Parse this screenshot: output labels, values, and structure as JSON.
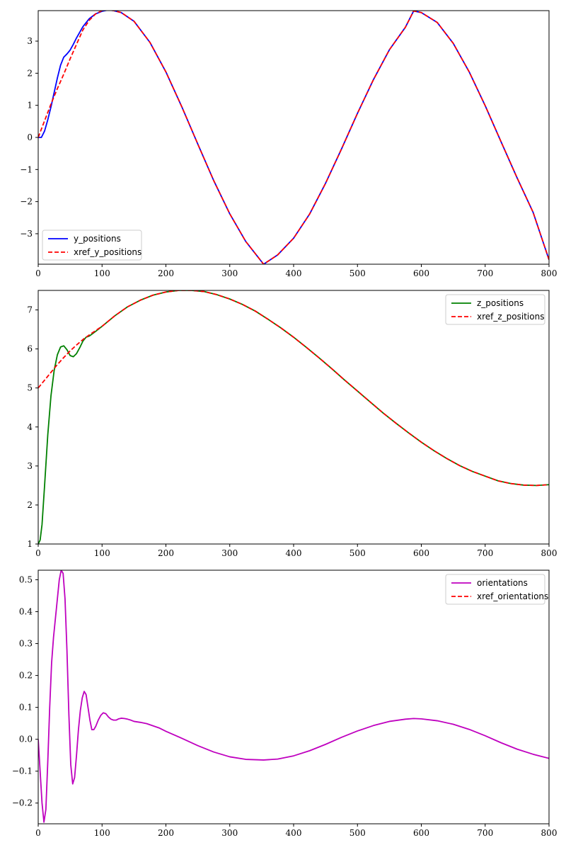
{
  "chart_data": [
    {
      "type": "line",
      "xlim": [
        0,
        800
      ],
      "ylim": [
        -3.95,
        3.95
      ],
      "xticks": [
        0,
        100,
        200,
        300,
        400,
        500,
        600,
        700,
        800
      ],
      "yticks": [
        -3,
        -2,
        -1,
        0,
        1,
        2,
        3
      ],
      "ytick_labels": [
        "−3",
        "−2",
        "−1",
        "0",
        "1",
        "2",
        "3"
      ],
      "legend_position": "lower-left",
      "series": [
        {
          "name": "y_positions",
          "color": "#0000ff",
          "style": "solid",
          "x": [
            0,
            5,
            10,
            15,
            20,
            25,
            30,
            35,
            40,
            45,
            50,
            55,
            60,
            70,
            80,
            90,
            100,
            110,
            118,
            130,
            150,
            175,
            200,
            225,
            250,
            275,
            300,
            325,
            353,
            375,
            400,
            425,
            450,
            475,
            500,
            525,
            550,
            575,
            588,
            600,
            625,
            650,
            675,
            700,
            725,
            750,
            775,
            800
          ],
          "y": [
            0.0,
            0.0,
            0.2,
            0.55,
            0.95,
            1.4,
            1.85,
            2.25,
            2.5,
            2.6,
            2.72,
            2.9,
            3.1,
            3.45,
            3.7,
            3.85,
            3.93,
            3.97,
            3.95,
            3.89,
            3.62,
            2.96,
            2.04,
            0.95,
            -0.21,
            -1.35,
            -2.38,
            -3.24,
            -3.95,
            -3.66,
            -3.14,
            -2.39,
            -1.43,
            -0.36,
            0.75,
            1.8,
            2.73,
            3.43,
            3.94,
            3.89,
            3.58,
            2.93,
            2.04,
            0.99,
            -0.14,
            -1.26,
            -2.33,
            -3.81
          ]
        },
        {
          "name": "xref_y_positions",
          "color": "#ff0000",
          "style": "dashed",
          "x": [
            0,
            10,
            20,
            30,
            40,
            50,
            60,
            70,
            80,
            90,
            100,
            110,
            118,
            130,
            150,
            175,
            200,
            225,
            250,
            275,
            300,
            325,
            353,
            375,
            400,
            425,
            450,
            475,
            500,
            525,
            550,
            575,
            588,
            600,
            625,
            650,
            675,
            700,
            725,
            750,
            775,
            800
          ],
          "y": [
            0.0,
            0.52,
            1.04,
            1.52,
            1.97,
            2.45,
            2.9,
            3.35,
            3.65,
            3.85,
            3.95,
            3.97,
            3.95,
            3.89,
            3.62,
            2.96,
            2.04,
            0.95,
            -0.21,
            -1.35,
            -2.38,
            -3.24,
            -3.95,
            -3.66,
            -3.14,
            -2.39,
            -1.43,
            -0.36,
            0.75,
            1.8,
            2.73,
            3.43,
            3.94,
            3.89,
            3.58,
            2.93,
            2.04,
            0.99,
            -0.14,
            -1.26,
            -2.33,
            -3.81
          ]
        }
      ]
    },
    {
      "type": "line",
      "xlim": [
        0,
        800
      ],
      "ylim": [
        1.0,
        7.5
      ],
      "xticks": [
        0,
        100,
        200,
        300,
        400,
        500,
        600,
        700,
        800
      ],
      "yticks": [
        1,
        2,
        3,
        4,
        5,
        6,
        7
      ],
      "ytick_labels": [
        "1",
        "2",
        "3",
        "4",
        "5",
        "6",
        "7"
      ],
      "legend_position": "upper-right",
      "series": [
        {
          "name": "z_positions",
          "color": "#008000",
          "style": "solid",
          "x": [
            0,
            3,
            6,
            10,
            15,
            20,
            25,
            30,
            35,
            40,
            45,
            50,
            55,
            60,
            65,
            70,
            75,
            80,
            90,
            100,
            120,
            140,
            160,
            180,
            200,
            220,
            240,
            260,
            280,
            300,
            320,
            340,
            360,
            380,
            400,
            420,
            440,
            460,
            480,
            500,
            520,
            540,
            560,
            580,
            600,
            620,
            640,
            660,
            680,
            700,
            720,
            740,
            760,
            780,
            800
          ],
          "y": [
            1.0,
            1.1,
            1.5,
            2.5,
            3.8,
            4.8,
            5.45,
            5.85,
            6.05,
            6.08,
            5.98,
            5.83,
            5.8,
            5.88,
            6.03,
            6.2,
            6.3,
            6.33,
            6.45,
            6.58,
            6.85,
            7.08,
            7.25,
            7.38,
            7.46,
            7.5,
            7.5,
            7.47,
            7.39,
            7.28,
            7.14,
            6.97,
            6.76,
            6.54,
            6.3,
            6.04,
            5.77,
            5.49,
            5.2,
            4.92,
            4.64,
            4.36,
            4.1,
            3.85,
            3.61,
            3.39,
            3.19,
            3.01,
            2.86,
            2.74,
            2.62,
            2.55,
            2.51,
            2.5,
            2.52
          ]
        },
        {
          "name": "xref_z_positions",
          "color": "#ff0000",
          "style": "dashed",
          "x": [
            0,
            10,
            20,
            30,
            40,
            50,
            60,
            70,
            80,
            90,
            100,
            120,
            140,
            160,
            180,
            200,
            220,
            240,
            260,
            280,
            300,
            320,
            340,
            360,
            380,
            400,
            420,
            440,
            460,
            480,
            500,
            520,
            540,
            560,
            580,
            600,
            620,
            640,
            660,
            680,
            700,
            720,
            740,
            760,
            780,
            800
          ],
          "y": [
            5.0,
            5.2,
            5.4,
            5.6,
            5.78,
            5.95,
            6.1,
            6.24,
            6.36,
            6.47,
            6.58,
            6.85,
            7.08,
            7.25,
            7.38,
            7.46,
            7.5,
            7.5,
            7.47,
            7.39,
            7.28,
            7.14,
            6.97,
            6.76,
            6.54,
            6.3,
            6.04,
            5.77,
            5.49,
            5.2,
            4.92,
            4.64,
            4.36,
            4.1,
            3.85,
            3.61,
            3.39,
            3.19,
            3.01,
            2.86,
            2.74,
            2.62,
            2.55,
            2.51,
            2.5,
            2.52
          ]
        }
      ]
    },
    {
      "type": "line",
      "xlim": [
        0,
        800
      ],
      "ylim": [
        -0.265,
        0.53
      ],
      "xticks": [
        0,
        100,
        200,
        300,
        400,
        500,
        600,
        700,
        800
      ],
      "yticks": [
        -0.2,
        -0.1,
        0.0,
        0.1,
        0.2,
        0.3,
        0.4,
        0.5
      ],
      "ytick_labels": [
        "−0.2",
        "−0.1",
        "0.0",
        "0.1",
        "0.2",
        "0.3",
        "0.4",
        "0.5"
      ],
      "legend_position": "upper-right",
      "series": [
        {
          "name": "orientations",
          "color": "#bf00bf",
          "style": "solid",
          "x": [
            0,
            3,
            6,
            9,
            12,
            15,
            18,
            21,
            24,
            27,
            30,
            33,
            36,
            39,
            42,
            45,
            48,
            51,
            54,
            57,
            60,
            63,
            66,
            69,
            72,
            75,
            78,
            81,
            84,
            87,
            90,
            94,
            98,
            102,
            106,
            110,
            114,
            118,
            122,
            126,
            130,
            135,
            140,
            145,
            150,
            160,
            170,
            180,
            190,
            200,
            225,
            250,
            275,
            300,
            325,
            353,
            375,
            400,
            425,
            450,
            475,
            500,
            525,
            550,
            575,
            588,
            600,
            625,
            650,
            675,
            700,
            725,
            750,
            775,
            800
          ],
          "y": [
            0.0,
            -0.1,
            -0.2,
            -0.26,
            -0.22,
            -0.07,
            0.1,
            0.24,
            0.32,
            0.38,
            0.44,
            0.5,
            0.53,
            0.52,
            0.44,
            0.28,
            0.08,
            -0.08,
            -0.14,
            -0.12,
            -0.05,
            0.03,
            0.09,
            0.13,
            0.15,
            0.14,
            0.1,
            0.06,
            0.03,
            0.03,
            0.04,
            0.06,
            0.075,
            0.083,
            0.08,
            0.07,
            0.063,
            0.06,
            0.06,
            0.064,
            0.066,
            0.065,
            0.063,
            0.06,
            0.056,
            0.053,
            0.049,
            0.042,
            0.035,
            0.025,
            0.003,
            -0.02,
            -0.04,
            -0.055,
            -0.063,
            -0.065,
            -0.062,
            -0.052,
            -0.036,
            -0.016,
            0.006,
            0.026,
            0.043,
            0.056,
            0.063,
            0.065,
            0.064,
            0.058,
            0.047,
            0.031,
            0.011,
            -0.011,
            -0.031,
            -0.047,
            -0.06
          ]
        },
        {
          "name": "xref_orientations",
          "color": "#ff0000",
          "style": "dashed",
          "x": [],
          "y": []
        }
      ]
    }
  ]
}
